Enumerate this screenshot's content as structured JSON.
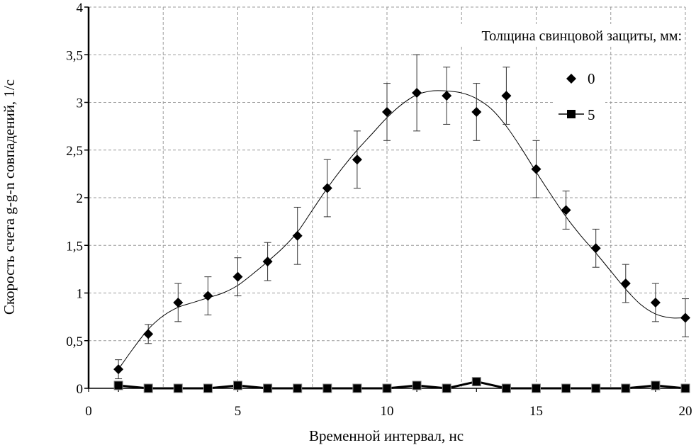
{
  "chart_data": {
    "type": "scatter",
    "title": "",
    "xlabel": "Временной интервал, нс",
    "ylabel": "Скорость счета g-g-n совпадений, 1/с",
    "xlim": [
      0,
      20
    ],
    "ylim": [
      0,
      4
    ],
    "x_ticks": [
      0,
      5,
      10,
      15,
      20
    ],
    "x_tick_labels": [
      "0",
      "5",
      "10",
      "15",
      "20"
    ],
    "y_ticks": [
      0,
      0.5,
      1,
      1.5,
      2,
      2.5,
      3,
      3.5,
      4
    ],
    "y_tick_labels": [
      "0",
      "0,5",
      "1",
      "1,5",
      "2",
      "2,5",
      "3",
      "3,5",
      "4"
    ],
    "grid": true,
    "legend": {
      "title": "Толщина свинцовой защиты, мм:",
      "placement": "top-right",
      "entries": [
        "0",
        "5"
      ]
    },
    "series": [
      {
        "name": "0",
        "marker": "diamond",
        "color": "#000000",
        "x": [
          1,
          2,
          3,
          4,
          5,
          6,
          7,
          8,
          9,
          10,
          11,
          12,
          13,
          14,
          15,
          16,
          17,
          18,
          19,
          20
        ],
        "y": [
          0.2,
          0.57,
          0.9,
          0.97,
          1.17,
          1.33,
          1.6,
          2.1,
          2.4,
          2.9,
          3.1,
          3.07,
          2.9,
          3.07,
          2.3,
          1.87,
          1.47,
          1.1,
          0.9,
          0.74
        ],
        "error": [
          0.1,
          0.1,
          0.2,
          0.2,
          0.2,
          0.2,
          0.3,
          0.3,
          0.3,
          0.3,
          0.4,
          0.3,
          0.3,
          0.3,
          0.3,
          0.2,
          0.2,
          0.2,
          0.2,
          0.2
        ],
        "fit_curve": {
          "x": [
            1,
            1.5,
            2,
            2.5,
            3,
            3.5,
            4,
            4.5,
            5,
            5.5,
            6,
            6.5,
            7,
            7.5,
            8,
            8.5,
            9,
            9.5,
            10,
            10.5,
            11,
            11.5,
            12,
            12.5,
            13,
            13.5,
            14,
            14.5,
            15,
            15.5,
            16,
            16.5,
            17,
            17.5,
            18,
            18.5,
            19,
            19.5,
            20
          ],
          "y": [
            0.2,
            0.42,
            0.62,
            0.76,
            0.85,
            0.9,
            0.95,
            1.0,
            1.08,
            1.2,
            1.33,
            1.47,
            1.64,
            1.87,
            2.1,
            2.31,
            2.5,
            2.67,
            2.84,
            2.98,
            3.08,
            3.12,
            3.12,
            3.1,
            3.04,
            2.93,
            2.75,
            2.52,
            2.27,
            2.03,
            1.8,
            1.6,
            1.42,
            1.23,
            1.04,
            0.88,
            0.78,
            0.74,
            0.74
          ]
        }
      },
      {
        "name": "5",
        "marker": "square",
        "color": "#000000",
        "x": [
          1,
          2,
          3,
          4,
          5,
          6,
          7,
          8,
          9,
          10,
          11,
          12,
          13,
          14,
          15,
          16,
          17,
          18,
          19,
          20
        ],
        "y": [
          0.03,
          0,
          0,
          0,
          0.03,
          0,
          0,
          0,
          0,
          0,
          0.03,
          0,
          0.07,
          0,
          0,
          0,
          0,
          0,
          0.03,
          0
        ]
      }
    ]
  }
}
